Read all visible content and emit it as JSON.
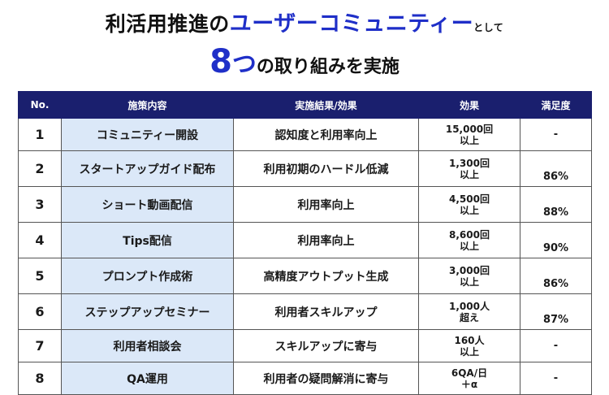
{
  "title": {
    "line1_prefix": "利活用推進の",
    "line1_highlight": "ユーザーコミュニティー",
    "line1_suffix": "として",
    "line2_number": "8",
    "line2_highlight": "つ",
    "line2_rest": "の取り組みを実施"
  },
  "table": {
    "headers": [
      "No.",
      "施策内容",
      "実施結果/効果",
      "効果",
      "満足度"
    ],
    "rows": [
      {
        "no": "1",
        "name": "コミュニティー開設",
        "result": "認知度と利用率向上",
        "effect_l1": "15,000回",
        "effect_l2": "以上",
        "sat": "-"
      },
      {
        "no": "2",
        "name": "スタートアップガイド配布",
        "result": "利用初期のハードル低減",
        "effect_l1": "1,300回",
        "effect_l2": "以上",
        "sat": "86%"
      },
      {
        "no": "3",
        "name": "ショート動画配信",
        "result": "利用率向上",
        "effect_l1": "4,500回",
        "effect_l2": "以上",
        "sat": "88%"
      },
      {
        "no": "4",
        "name": "Tips配信",
        "result": "利用率向上",
        "effect_l1": "8,600回",
        "effect_l2": "以上",
        "sat": "90%"
      },
      {
        "no": "5",
        "name": "プロンプト作成術",
        "result": "高精度アウトプット生成",
        "effect_l1": "3,000回",
        "effect_l2": "以上",
        "sat": "86%"
      },
      {
        "no": "6",
        "name": "ステップアップセミナー",
        "result": "利用者スキルアップ",
        "effect_l1": "1,000人",
        "effect_l2": "超え",
        "sat": "87%"
      },
      {
        "no": "7",
        "name": "利用者相談会",
        "result": "スキルアップに寄与",
        "effect_l1": "160人",
        "effect_l2": "以上",
        "sat": "-"
      },
      {
        "no": "8",
        "name": "QA運用",
        "result": "利用者の疑問解消に寄与",
        "effect_l1": "6QA/日",
        "effect_l2": "＋α",
        "sat": "-"
      }
    ]
  },
  "colors": {
    "header_bg": "#1a1f6e",
    "accent_blue": "#1f2fc8",
    "name_cell_bg": "#dbe8f8"
  }
}
